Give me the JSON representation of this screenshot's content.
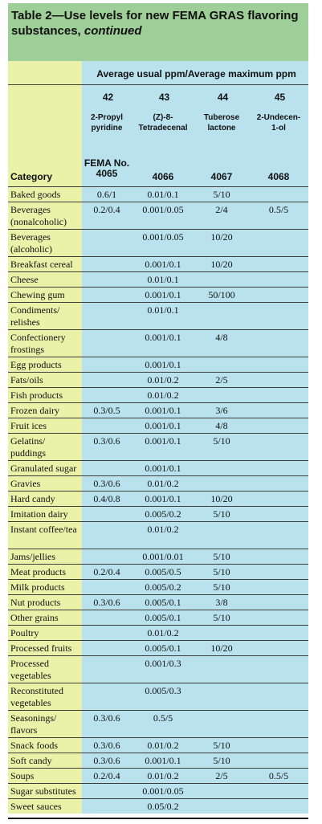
{
  "title": {
    "main": "Table 2—Use levels for new FEMA GRAS flavoring substances,",
    "italic": "continued"
  },
  "subheader": "Average usual ppm/Average maximum ppm",
  "columns": [
    {
      "number": "42",
      "name": "2-Propyl\npyridine",
      "fema": "4065"
    },
    {
      "number": "43",
      "name": "(Z)-8-\nTetradecenal",
      "fema": "4066"
    },
    {
      "number": "44",
      "name": "Tuberose\nlactone",
      "fema": "4067"
    },
    {
      "number": "45",
      "name": "2-Undecen-\n1-ol",
      "fema": "4068"
    }
  ],
  "fema_label": "FEMA No.",
  "category_label": "Category",
  "rows": [
    {
      "category": "Baked goods",
      "v": [
        "0.6/1",
        "0.01/0.1",
        "5/10",
        ""
      ]
    },
    {
      "category": "Beverages (nonalcoholic)",
      "v": [
        "0.2/0.4",
        "0.001/0.05",
        "2/4",
        "0.5/5"
      ]
    },
    {
      "category": "Beverages (alcoholic)",
      "v": [
        "",
        "0.001/0.05",
        "10/20",
        ""
      ]
    },
    {
      "category": "Breakfast cereal",
      "v": [
        "",
        "0.001/0.1",
        "10/20",
        ""
      ]
    },
    {
      "category": "Cheese",
      "v": [
        "",
        "0.01/0.1",
        "",
        ""
      ]
    },
    {
      "category": "Chewing gum",
      "v": [
        "",
        "0.001/0.1",
        "50/100",
        ""
      ]
    },
    {
      "category": "Condiments/ relishes",
      "v": [
        "",
        "0.01/0.1",
        "",
        ""
      ]
    },
    {
      "category": "Confectionery frostings",
      "v": [
        "",
        "0.001/0.1",
        "4/8",
        ""
      ]
    },
    {
      "category": "Egg products",
      "v": [
        "",
        "0.001/0.1",
        "",
        ""
      ]
    },
    {
      "category": "Fats/oils",
      "v": [
        "",
        "0.01/0.2",
        "2/5",
        ""
      ]
    },
    {
      "category": "Fish products",
      "v": [
        "",
        "0.01/0.2",
        "",
        ""
      ]
    },
    {
      "category": "Frozen dairy",
      "v": [
        "0.3/0.5",
        "0.001/0.1",
        "3/6",
        ""
      ]
    },
    {
      "category": "Fruit ices",
      "v": [
        "",
        "0.001/0.1",
        "4/8",
        ""
      ]
    },
    {
      "category": "Gelatins/ puddings",
      "v": [
        "0.3/0.6",
        "0.001/0.1",
        "5/10",
        ""
      ]
    },
    {
      "category": "Granulated sugar",
      "v": [
        "",
        "0.001/0.1",
        "",
        ""
      ]
    },
    {
      "category": "Gravies",
      "v": [
        "0.3/0.6",
        "0.01/0.2",
        "",
        ""
      ]
    },
    {
      "category": "Hard candy",
      "v": [
        "0.4/0.8",
        "0.001/0.1",
        "10/20",
        ""
      ]
    },
    {
      "category": "Imitation dairy",
      "v": [
        "",
        "0.005/0.2",
        "5/10",
        ""
      ]
    },
    {
      "category": "Instant coffee/tea",
      "v": [
        "",
        "0.01/0.2",
        "",
        ""
      ]
    },
    {
      "category": "Jams/jellies",
      "v": [
        "",
        "0.001/0.01",
        "5/10",
        ""
      ]
    },
    {
      "category": "Meat products",
      "v": [
        "0.2/0.4",
        "0.005/0.5",
        "5/10",
        ""
      ]
    },
    {
      "category": "Milk products",
      "v": [
        "",
        "0.005/0.2",
        "5/10",
        ""
      ]
    },
    {
      "category": "Nut products",
      "v": [
        "0.3/0.6",
        "0.005/0.1",
        "3/8",
        ""
      ]
    },
    {
      "category": "Other grains",
      "v": [
        "",
        "0.005/0.1",
        "5/10",
        ""
      ]
    },
    {
      "category": "Poultry",
      "v": [
        "",
        "0.01/0.2",
        "",
        ""
      ]
    },
    {
      "category": "Processed fruits",
      "v": [
        "",
        "0.005/0.1",
        "10/20",
        ""
      ]
    },
    {
      "category": "Processed vegetables",
      "v": [
        "",
        "0.001/0.3",
        "",
        ""
      ]
    },
    {
      "category": "Reconstituted vegetables",
      "v": [
        "",
        "0.005/0.3",
        "",
        ""
      ]
    },
    {
      "category": "Seasonings/ flavors",
      "v": [
        "0.3/0.6",
        "0.5/5",
        "",
        ""
      ]
    },
    {
      "category": "Snack foods",
      "v": [
        "0.3/0.6",
        "0.01/0.2",
        "5/10",
        ""
      ]
    },
    {
      "category": "Soft candy",
      "v": [
        "0.3/0.6",
        "0.001/0.1",
        "5/10",
        ""
      ]
    },
    {
      "category": "Soups",
      "v": [
        "0.2/0.4",
        "0.01/0.2",
        "2/5",
        "0.5/5"
      ]
    },
    {
      "category": "Sugar substitutes",
      "v": [
        "",
        "0.001/0.05",
        "",
        ""
      ]
    },
    {
      "category": "Sweet sauces",
      "v": [
        "",
        "0.05/0.2",
        "",
        ""
      ]
    }
  ]
}
